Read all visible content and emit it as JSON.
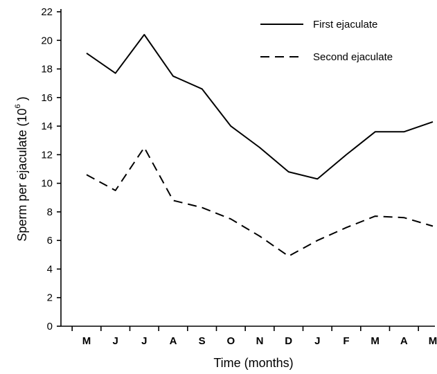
{
  "chart_data": {
    "type": "line",
    "categories": [
      "M",
      "J",
      "J",
      "A",
      "S",
      "O",
      "N",
      "D",
      "J",
      "F",
      "M",
      "A",
      "M"
    ],
    "series": [
      {
        "name": "First ejaculate",
        "style": "solid",
        "values": [
          19.1,
          17.7,
          20.4,
          17.5,
          16.6,
          14.0,
          12.5,
          10.8,
          10.3,
          12.0,
          13.6,
          13.6,
          14.3
        ]
      },
      {
        "name": "Second ejaculate",
        "style": "dashed",
        "values": [
          10.6,
          9.5,
          12.5,
          8.8,
          8.3,
          7.5,
          6.3,
          4.9,
          6.0,
          6.9,
          7.7,
          7.6,
          7.0
        ]
      }
    ],
    "xlabel": "Time (months)",
    "ylabel": "Sperm per ejaculate (10",
    "ylabel_superscript": "6",
    "ylabel_close": " )",
    "ylim": [
      0,
      22
    ],
    "yticks": [
      0,
      2,
      4,
      6,
      8,
      10,
      12,
      14,
      16,
      18,
      20,
      22
    ],
    "legend_position": "top-right",
    "grid": false
  }
}
